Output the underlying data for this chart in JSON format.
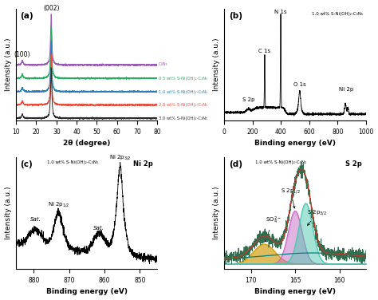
{
  "panel_a": {
    "title": "(a)",
    "xlabel": "2θ (degree)",
    "ylabel": "Intensity (a.u.)",
    "xlim": [
      10,
      80
    ],
    "xticks": [
      10,
      20,
      30,
      40,
      50,
      60,
      70,
      80
    ],
    "labels": [
      "C₃N₅",
      "0.5 wt% S-Ni(OH)₂-C₃N₅",
      "1.0 wt% S-Ni(OH)₂-C₃N₅",
      "2.0 wt% S-Ni(OH)₂-C₃N₅",
      "3.0 wt% S-Ni(OH)₂-C₃N₅"
    ],
    "colors": [
      "#9b59b6",
      "#27ae60",
      "#2980b9",
      "#e74c3c",
      "#2c2c2c"
    ],
    "offsets": [
      4.0,
      3.0,
      2.0,
      1.0,
      0.0
    ]
  },
  "panel_b": {
    "title": "(b)",
    "label": "1.0 wt% S-Ni(OH)₂-C₃N₅",
    "xlabel": "Binding energy (eV)",
    "ylabel": "Intensity (a.u.)",
    "xlim": [
      0,
      1000
    ],
    "xticks": [
      0,
      200,
      400,
      600,
      800,
      1000
    ]
  },
  "panel_c": {
    "title": "(c)",
    "label1": "1.0 wt% S-Ni(OH)₂-C₃N₅",
    "label2": "Ni 2p",
    "xlabel": "Binding energy (eV)",
    "ylabel": "Intensity (a.u.)",
    "xticks": [
      880,
      870,
      860,
      850
    ]
  },
  "panel_d": {
    "title": "(d)",
    "label1": "1.0 wt% S-Ni(OH)₂-C₃N₅",
    "label2": "S 2p",
    "xlabel": "Binding energy (eV)",
    "ylabel": "Intensity (a.u.)",
    "xticks": [
      170,
      165,
      160
    ]
  },
  "bg": "#ffffff",
  "fs": 6.5
}
